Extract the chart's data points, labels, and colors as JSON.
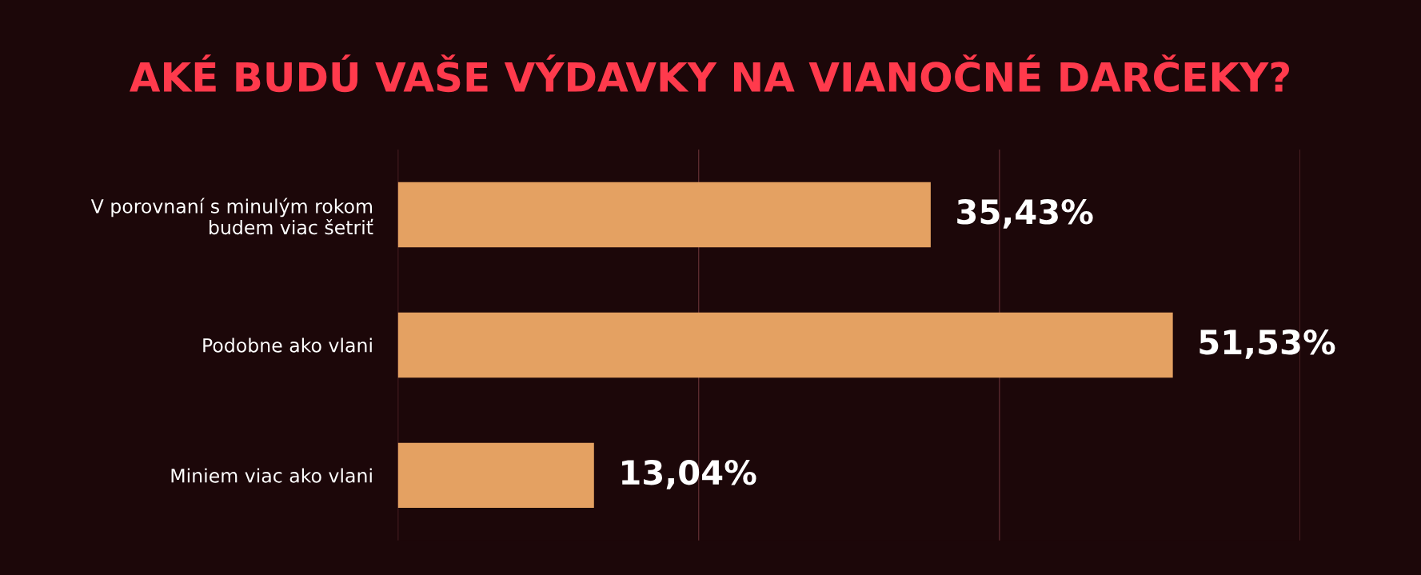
{
  "chart_data": {
    "type": "bar",
    "orientation": "horizontal",
    "title": "AKÉ BUDÚ VAŠE VÝDAVKY NA VIANOČNÉ DARČEKY?",
    "categories": [
      "V porovnaní s minulým rokom\nbudem viac šetriť",
      "Podobne ako vlani",
      "Miniem viac ako vlani"
    ],
    "values": [
      35.43,
      51.53,
      13.04
    ],
    "color": "#e4a162",
    "value_labels": [
      "35,43%",
      "51,53%",
      "13,04%"
    ],
    "xlim": [
      0,
      60
    ],
    "xticks": [
      {
        "value": 0,
        "label": null
      },
      {
        "value": 20,
        "label": null
      },
      {
        "value": 40,
        "label": null
      },
      {
        "value": 60,
        "label": null
      }
    ],
    "tick_labels": "y",
    "grid": "x",
    "legend": false
  }
}
